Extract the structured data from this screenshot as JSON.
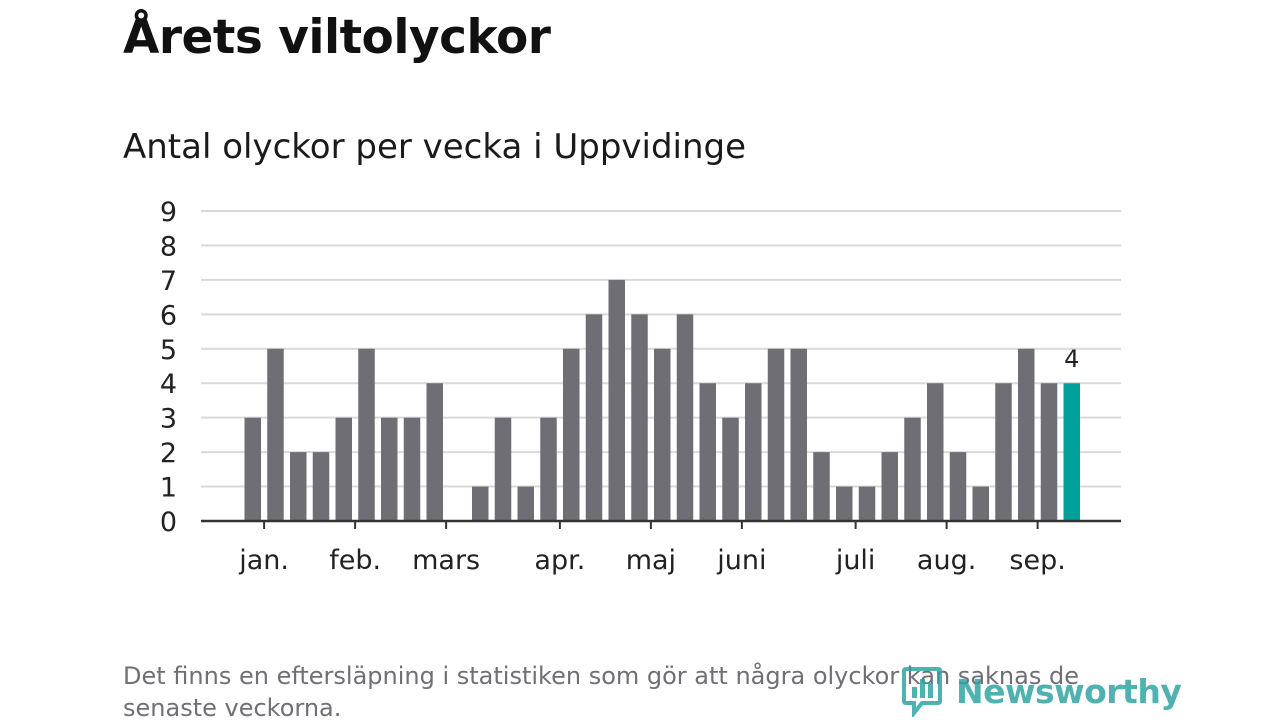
{
  "header": {
    "title": "Årets viltolyckor",
    "subtitle": "Antal olyckor per vecka i Uppvidinge"
  },
  "footnote": "Det finns en eftersläpning i statistiken som gör att några olyckor kan saknas de senaste veckorna.",
  "logo": {
    "text": "Newsworthy"
  },
  "colors": {
    "bar": "#6f6e75",
    "highlight": "#00a19a",
    "grid": "#d9d9d9",
    "axis": "#333333",
    "logo": "#2aa1a0"
  },
  "chart_data": {
    "type": "bar",
    "ylim": [
      0,
      9
    ],
    "yticks": [
      0,
      1,
      2,
      3,
      4,
      5,
      6,
      7,
      8,
      9
    ],
    "grid": true,
    "values": [
      3,
      5,
      2,
      2,
      3,
      5,
      3,
      3,
      4,
      0,
      1,
      3,
      1,
      3,
      5,
      6,
      7,
      6,
      5,
      6,
      4,
      3,
      4,
      5,
      5,
      2,
      1,
      1,
      2,
      3,
      4,
      2,
      1,
      4,
      5,
      4,
      4
    ],
    "highlight_index": 36,
    "highlight_label": "4",
    "months": [
      {
        "label": "jan.",
        "bar_index": 0.5
      },
      {
        "label": "feb.",
        "bar_index": 4.5
      },
      {
        "label": "mars",
        "bar_index": 8.5
      },
      {
        "label": "apr.",
        "bar_index": 13.5
      },
      {
        "label": "maj",
        "bar_index": 17.5
      },
      {
        "label": "juni",
        "bar_index": 21.5
      },
      {
        "label": "juli",
        "bar_index": 26.5
      },
      {
        "label": "aug.",
        "bar_index": 30.5
      },
      {
        "label": "sep.",
        "bar_index": 34.5
      }
    ]
  }
}
